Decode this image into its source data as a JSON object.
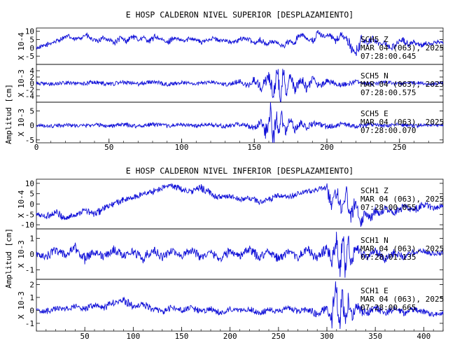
{
  "chart_data": [
    {
      "type": "line",
      "title": "E HOSP CALDERON NIVEL SUPERIOR [DESPLAZAMIENTO]",
      "ylabel": "Amplitud [cm]",
      "xlim": [
        0,
        280
      ],
      "xticks": [
        0,
        50,
        100,
        150,
        200,
        250
      ],
      "traces": [
        {
          "name": "SCH5",
          "component": "Z",
          "scale": "X 10-4",
          "date": "MAR 04 (063), 2025",
          "time": "07:28:00.645",
          "ylim": [
            -10,
            12
          ],
          "yticks": [
            -5,
            0,
            5,
            10
          ],
          "series": [
            {
              "x": [
                0,
                5,
                10,
                14,
                18,
                22,
                26,
                30,
                34,
                38,
                42,
                46,
                50,
                54,
                58,
                62,
                66,
                70,
                74,
                78,
                82,
                86,
                90,
                94,
                98,
                102,
                106,
                110,
                114,
                118,
                122,
                126,
                130,
                134,
                138,
                142,
                146,
                150,
                154,
                158,
                162,
                166,
                170,
                174,
                178,
                180,
                184,
                186,
                190,
                194,
                198,
                202,
                206,
                210,
                214,
                218,
                220,
                224,
                228,
                232,
                236,
                240,
                244,
                248,
                252,
                256,
                260,
                264,
                268,
                272,
                276,
                280
              ],
              "y": [
                0,
                1,
                3,
                4,
                6,
                7,
                5,
                6,
                8,
                5,
                4,
                6,
                5,
                3,
                6,
                4,
                7,
                5,
                6,
                4,
                7,
                5,
                3,
                6,
                5,
                4,
                6,
                5,
                3,
                5,
                6,
                4,
                5,
                3,
                4,
                6,
                5,
                3,
                5,
                2,
                4,
                3,
                1,
                4,
                2,
                7,
                8,
                6,
                4,
                9,
                7,
                8,
                4,
                8,
                5,
                -2,
                -3,
                5,
                3,
                6,
                2,
                4,
                -1,
                3,
                5,
                2,
                4,
                1,
                3,
                2,
                4,
                3
              ]
            }
          ]
        },
        {
          "name": "SCH5",
          "component": "N",
          "scale": "X 10-3",
          "date": "MAR 04 (063), 2025",
          "time": "07:28:00.575",
          "ylim": [
            -6,
            6
          ],
          "yticks": [
            -4,
            -2,
            0,
            2,
            4
          ],
          "series": [
            {
              "x": [
                0,
                10,
                20,
                30,
                40,
                50,
                60,
                70,
                80,
                90,
                100,
                110,
                120,
                130,
                140,
                145,
                150,
                155,
                160,
                163,
                166,
                168,
                170,
                172,
                175,
                178,
                182,
                186,
                190,
                195,
                200,
                210,
                220,
                230,
                240,
                250,
                260,
                270,
                280
              ],
              "y": [
                0,
                -0.3,
                0.2,
                -0.2,
                0.4,
                -0.3,
                0.3,
                -0.2,
                0.5,
                -0.4,
                0.3,
                -0.2,
                0.4,
                -0.3,
                0.6,
                -0.8,
                1.2,
                -1.5,
                2.5,
                -3.5,
                4.2,
                -4.8,
                3.6,
                -2.8,
                2.2,
                -2,
                1.8,
                -1.6,
                1.2,
                -1,
                0.8,
                -0.5,
                0.4,
                -0.3,
                0.3,
                -0.2,
                0.2,
                -0.2,
                0.1
              ]
            }
          ]
        },
        {
          "name": "SCH5",
          "component": "E",
          "scale": "X 10-3",
          "date": "MAR 04 (063), 2025",
          "time": "07:28:00.070",
          "ylim": [
            -6,
            8
          ],
          "yticks": [
            -5,
            0,
            5
          ],
          "series": [
            {
              "x": [
                0,
                10,
                20,
                30,
                40,
                50,
                60,
                70,
                80,
                90,
                100,
                110,
                120,
                130,
                140,
                150,
                155,
                158,
                161,
                163,
                165,
                167,
                169,
                171,
                174,
                178,
                182,
                186,
                190,
                200,
                210,
                220,
                230,
                240,
                250,
                260,
                270,
                280
              ],
              "y": [
                0,
                -0.3,
                0.2,
                -0.2,
                0.3,
                -0.2,
                0.3,
                -0.3,
                0.4,
                -0.2,
                0.3,
                -0.2,
                0.3,
                -0.4,
                0.5,
                -0.8,
                1.5,
                -3,
                6,
                -5.5,
                4.5,
                -4,
                3.2,
                -2.8,
                2,
                -1.5,
                1.2,
                -1,
                0.8,
                -0.5,
                0.4,
                -0.3,
                0.3,
                -0.2,
                0.3,
                -0.2,
                0.2,
                0.1
              ]
            }
          ]
        }
      ]
    },
    {
      "type": "line",
      "title": "E HOSP CALDERON NIVEL INFERIOR [DESPLAZAMIENTO]",
      "ylabel": "Amplitud [cm]",
      "xlim": [
        0,
        420
      ],
      "xticks": [
        50,
        100,
        150,
        200,
        250,
        300,
        350,
        400
      ],
      "traces": [
        {
          "name": "SCH1",
          "component": "Z",
          "scale": "X 10-4",
          "date": "MAR 04 (063), 2025",
          "time": "07:28:00.055",
          "ylim": [
            -12,
            12
          ],
          "yticks": [
            -10,
            -5,
            0,
            5,
            10
          ],
          "series": [
            {
              "x": [
                0,
                10,
                20,
                30,
                40,
                50,
                60,
                70,
                80,
                90,
                100,
                110,
                120,
                130,
                140,
                150,
                160,
                170,
                180,
                190,
                200,
                210,
                220,
                230,
                240,
                250,
                260,
                270,
                280,
                290,
                300,
                305,
                310,
                315,
                320,
                325,
                330,
                335,
                340,
                345,
                350,
                355,
                360,
                370,
                380,
                390,
                400,
                410,
                420
              ],
              "y": [
                -5,
                -6,
                -4,
                -7,
                -5,
                -3,
                -5,
                -2,
                0,
                2,
                3,
                5,
                6,
                8,
                9,
                7,
                6,
                8,
                5,
                3,
                4,
                2,
                3,
                1,
                2,
                4,
                3,
                5,
                6,
                7,
                8,
                0,
                6,
                -2,
                5,
                -6,
                3,
                -9,
                -4,
                -7,
                -3,
                -5,
                -2,
                -4,
                -1,
                -3,
                0,
                -2,
                -1
              ]
            }
          ]
        },
        {
          "name": "SCH1",
          "component": "N",
          "scale": "X 10-3",
          "date": "MAR 04 (063), 2025",
          "time": "07:28:01.135",
          "ylim": [
            -1.6,
            1.6
          ],
          "yticks": [
            -1,
            0,
            1
          ],
          "series": [
            {
              "x": [
                0,
                10,
                20,
                30,
                40,
                50,
                60,
                70,
                80,
                90,
                100,
                110,
                120,
                130,
                140,
                150,
                160,
                170,
                180,
                190,
                200,
                210,
                220,
                230,
                240,
                250,
                260,
                270,
                280,
                290,
                300,
                305,
                310,
                313,
                316,
                319,
                322,
                325,
                330,
                340,
                350,
                360,
                370,
                380,
                390,
                400,
                410,
                420
              ],
              "y": [
                0,
                -0.2,
                0.3,
                -0.1,
                0.4,
                -0.3,
                0.2,
                -0.2,
                0.3,
                -0.1,
                0.2,
                -0.3,
                0.3,
                -0.2,
                0.2,
                -0.1,
                0.3,
                -0.2,
                0.1,
                -0.3,
                0.2,
                -0.1,
                0.3,
                -0.2,
                0.2,
                -0.3,
                0.1,
                -0.2,
                0.3,
                -0.3,
                0.4,
                -0.6,
                0.9,
                -1.2,
                1.4,
                -1,
                0.8,
                -0.5,
                0.4,
                -0.2,
                0.2,
                -0.3,
                0.1,
                -0.2,
                0.1,
                0.2,
                0,
                0.1
              ]
            }
          ]
        },
        {
          "name": "SCH1",
          "component": "E",
          "scale": "X 10-3",
          "date": "MAR 04 (063), 2025",
          "time": "07:28:00.665",
          "ylim": [
            -1.6,
            2.4
          ],
          "yticks": [
            -1,
            0,
            1,
            2
          ],
          "series": [
            {
              "x": [
                0,
                10,
                20,
                30,
                40,
                50,
                60,
                70,
                80,
                90,
                100,
                110,
                120,
                130,
                140,
                150,
                160,
                170,
                180,
                190,
                200,
                210,
                220,
                230,
                240,
                250,
                260,
                270,
                280,
                290,
                300,
                305,
                310,
                313,
                316,
                319,
                322,
                326,
                330,
                340,
                350,
                360,
                370,
                380,
                390,
                400,
                410,
                420
              ],
              "y": [
                0,
                -0.1,
                0.2,
                0.1,
                0.3,
                0.1,
                0.4,
                0.2,
                0.6,
                0.8,
                0.3,
                0.5,
                0.1,
                -0.1,
                0.2,
                0,
                0.2,
                -0.1,
                0.1,
                -0.2,
                0.1,
                0,
                0.1,
                -0.2,
                0.1,
                -0.1,
                0.2,
                -0.1,
                0.1,
                -0.3,
                0.2,
                -0.6,
                1.8,
                -1.2,
                1.2,
                -0.8,
                0.7,
                -0.5,
                0.4,
                -0.3,
                0.2,
                -0.2,
                0.1,
                -0.2,
                0.1,
                -0.1,
                -0.3,
                -0.2
              ]
            }
          ]
        }
      ]
    }
  ]
}
